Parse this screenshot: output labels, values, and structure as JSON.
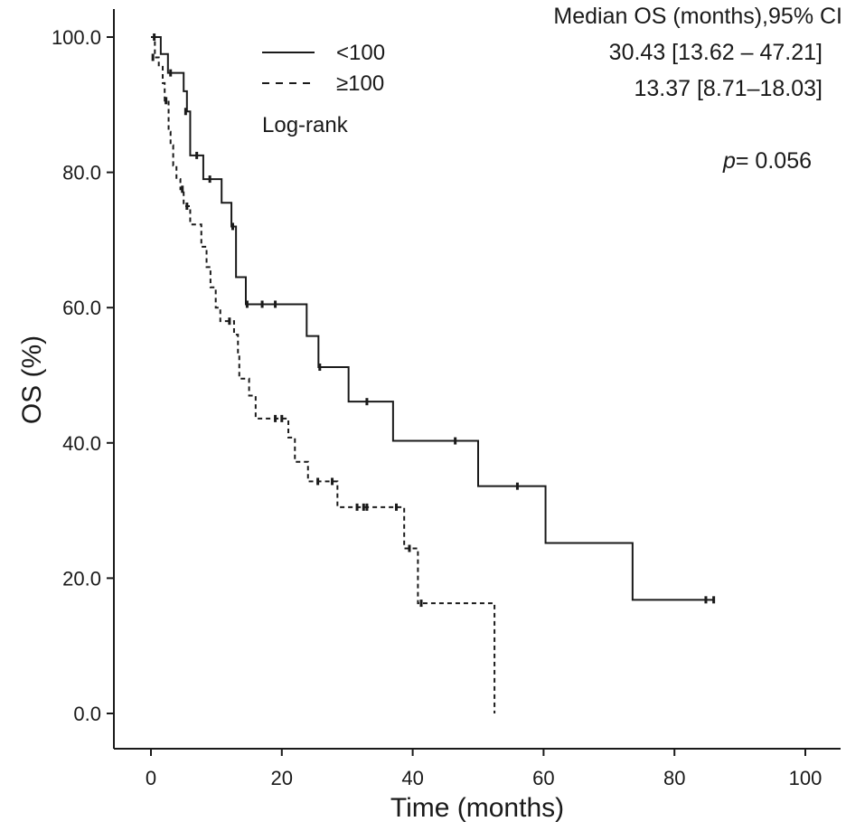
{
  "chart_data": {
    "type": "line",
    "subtype": "kaplan-meier",
    "xlabel": "Time (months)",
    "ylabel": "OS (%)",
    "xlim": [
      0,
      100
    ],
    "ylim": [
      0,
      100
    ],
    "xticks": [
      "0",
      "20",
      "40",
      "60",
      "80",
      "100"
    ],
    "yticks": [
      "0.0",
      "20.0",
      "40.0",
      "60.0",
      "80.0",
      "100.0"
    ],
    "grid": false,
    "legend_position": "top-left",
    "legend_note": "Log-rank",
    "stats_header": "Median OS (months),95% CI",
    "pvalue_symbol": "p",
    "pvalue_text": "= 0.056",
    "series": [
      {
        "name": "<100",
        "style": "solid",
        "median_ci": "30.43 [13.62 – 47.21]",
        "steps": [
          [
            0,
            100
          ],
          [
            1.5,
            97.5
          ],
          [
            2.6,
            94.7
          ],
          [
            5.0,
            92.0
          ],
          [
            5.5,
            89.0
          ],
          [
            6.0,
            82.5
          ],
          [
            8.0,
            79.0
          ],
          [
            10.8,
            75.5
          ],
          [
            12.3,
            72.0
          ],
          [
            13.0,
            64.5
          ],
          [
            14.5,
            60.5
          ],
          [
            23.8,
            55.8
          ],
          [
            25.6,
            51.2
          ],
          [
            30.2,
            46.1
          ],
          [
            37.0,
            40.3
          ],
          [
            50.0,
            33.6
          ],
          [
            60.3,
            25.2
          ],
          [
            73.6,
            16.8
          ],
          [
            86.0,
            16.8
          ]
        ],
        "censored": [
          [
            0.5,
            100
          ],
          [
            3.0,
            94.7
          ],
          [
            5.3,
            89.0
          ],
          [
            7.0,
            82.5
          ],
          [
            9.0,
            79.0
          ],
          [
            12.5,
            72.0
          ],
          [
            14.7,
            60.5
          ],
          [
            17.0,
            60.5
          ],
          [
            19.0,
            60.5
          ],
          [
            25.8,
            51.2
          ],
          [
            33.0,
            46.1
          ],
          [
            46.5,
            40.3
          ],
          [
            56.0,
            33.6
          ],
          [
            84.8,
            16.8
          ],
          [
            86.0,
            16.8
          ]
        ]
      },
      {
        "name": "≥100",
        "style": "dashed",
        "median_ci": "13.37 [8.71–18.03]",
        "steps": [
          [
            0,
            100
          ],
          [
            0.6,
            97.0
          ],
          [
            1.2,
            95.6
          ],
          [
            1.8,
            93.2
          ],
          [
            2.1,
            90.6
          ],
          [
            2.7,
            86.0
          ],
          [
            3.0,
            84.0
          ],
          [
            3.4,
            81.0
          ],
          [
            3.9,
            79.0
          ],
          [
            4.5,
            77.5
          ],
          [
            5.0,
            75.0
          ],
          [
            6.0,
            72.3
          ],
          [
            7.7,
            69.0
          ],
          [
            8.5,
            66.0
          ],
          [
            9.1,
            63.0
          ],
          [
            9.9,
            60.0
          ],
          [
            10.6,
            58.0
          ],
          [
            12.7,
            56.0
          ],
          [
            13.3,
            53.0
          ],
          [
            13.5,
            49.5
          ],
          [
            15.0,
            47.0
          ],
          [
            16.0,
            43.6
          ],
          [
            21.0,
            40.8
          ],
          [
            22.0,
            37.2
          ],
          [
            24.0,
            34.3
          ],
          [
            28.5,
            30.5
          ],
          [
            38.7,
            24.4
          ],
          [
            40.8,
            16.3
          ],
          [
            52.5,
            0
          ]
        ],
        "censored": [
          [
            0.3,
            97.0
          ],
          [
            2.3,
            90.6
          ],
          [
            4.8,
            77.5
          ],
          [
            5.5,
            75.0
          ],
          [
            12.0,
            58.0
          ],
          [
            19.0,
            43.6
          ],
          [
            20.0,
            43.6
          ],
          [
            25.5,
            34.3
          ],
          [
            27.7,
            34.3
          ],
          [
            31.5,
            30.5
          ],
          [
            32.5,
            30.5
          ],
          [
            33.0,
            30.5
          ],
          [
            37.5,
            30.5
          ],
          [
            39.5,
            24.4
          ],
          [
            41.3,
            16.3
          ]
        ]
      }
    ]
  }
}
